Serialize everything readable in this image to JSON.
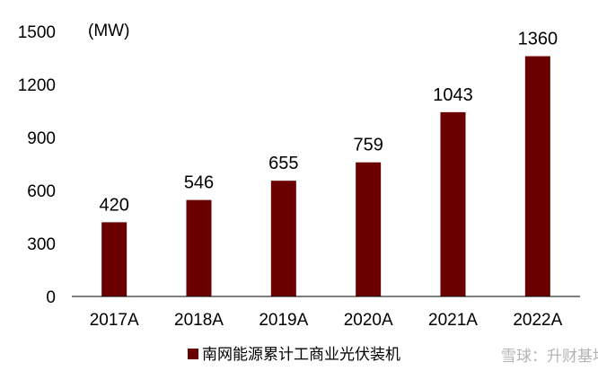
{
  "chart_data": {
    "type": "bar",
    "unit_label": "(MW)",
    "categories": [
      "2017A",
      "2018A",
      "2019A",
      "2020A",
      "2021A",
      "2022A"
    ],
    "series": [
      {
        "name": "南网能源累计工商业光伏装机",
        "values": [
          420,
          546,
          655,
          759,
          1043,
          1360
        ],
        "color": "#6B0000"
      }
    ],
    "data_labels": [
      "420",
      "546",
      "655",
      "759",
      "1043",
      "1360"
    ],
    "y_ticks": [
      0,
      300,
      600,
      900,
      1200,
      1500
    ],
    "y_tick_labels": [
      "0",
      "300",
      "600",
      "900",
      "1200",
      "1500"
    ],
    "ylim": [
      0,
      1500
    ],
    "grid": false,
    "legend_position": "bottom"
  },
  "watermark": {
    "text": "雪球：升财基地"
  }
}
